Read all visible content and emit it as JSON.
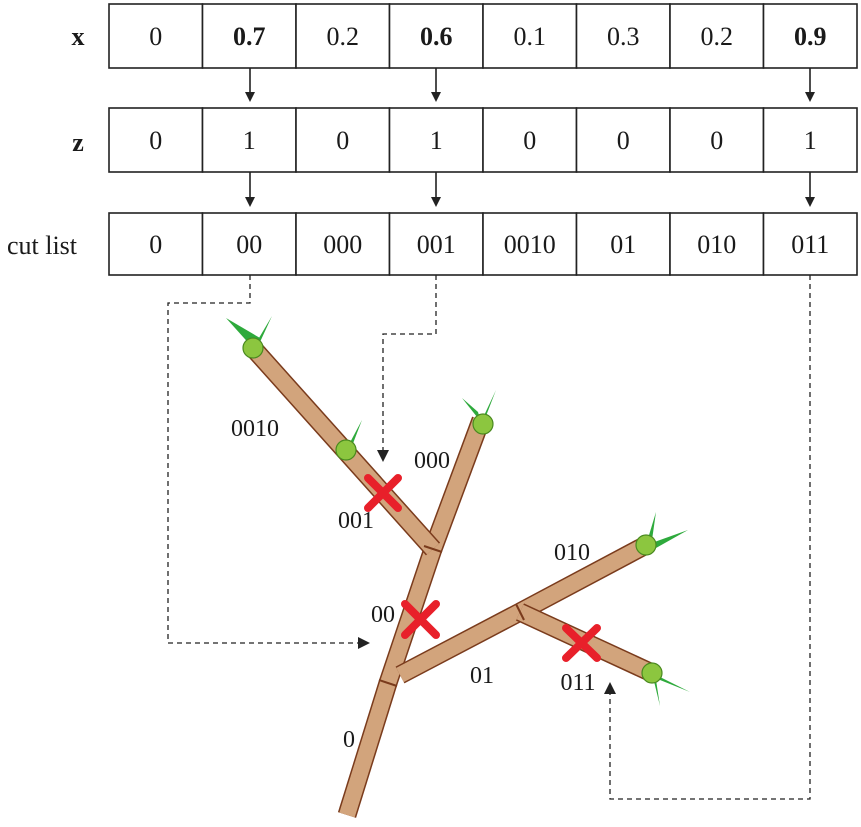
{
  "rows": {
    "x": {
      "label": "x",
      "values": [
        "0",
        "0.7",
        "0.2",
        "0.6",
        "0.1",
        "0.3",
        "0.2",
        "0.9"
      ],
      "bold_indices": [
        1,
        3,
        7
      ]
    },
    "z": {
      "label": "z",
      "values": [
        "0",
        "1",
        "0",
        "1",
        "0",
        "0",
        "0",
        "1"
      ]
    },
    "cut": {
      "label": "cut list",
      "values": [
        "0",
        "00",
        "000",
        "001",
        "0010",
        "01",
        "010",
        "011"
      ]
    }
  },
  "tree_labels": {
    "b0010": "0010",
    "b000": "000",
    "b001": "001",
    "b010": "010",
    "b00": "00",
    "b01": "01",
    "b011": "011",
    "b0": "0"
  },
  "colors": {
    "branch_fill": "#d2a47c",
    "branch_stroke": "#7a3b1c",
    "leaf_green": "#2eaa3c",
    "bud_green": "#8cc63f",
    "cut_mark": "#e8202a",
    "line": "#222222"
  },
  "icons": {
    "cut_mark": "cross-icon",
    "bud": "bud-icon"
  }
}
